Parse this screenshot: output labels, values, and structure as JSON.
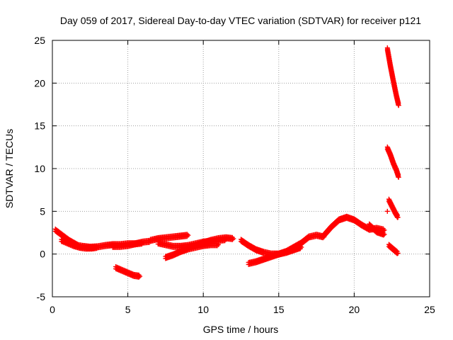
{
  "chart_data": {
    "type": "scatter",
    "title": "Day 059 of 2017, Sidereal Day-to-day VTEC variation (SDTVAR) for receiver p121",
    "xlabel": "GPS time / hours",
    "ylabel": "SDTVAR / TECUs",
    "xlim": [
      0,
      25
    ],
    "ylim": [
      -5,
      25
    ],
    "xticks": [
      0,
      5,
      10,
      15,
      20,
      25
    ],
    "yticks": [
      -5,
      0,
      5,
      10,
      15,
      20,
      25
    ],
    "xtick_labels": [
      "0",
      "5",
      "10",
      "15",
      "20",
      "25"
    ],
    "ytick_labels": [
      "-5",
      "0",
      "5",
      "10",
      "15",
      "20",
      "25"
    ],
    "grid": true,
    "marker": "+",
    "marker_color": "#ff0000",
    "series": [
      {
        "name": "SDTVAR",
        "segments": [
          {
            "x": [
              0.2,
              0.5,
              0.8,
              1.1,
              1.4,
              1.7,
              2.0,
              2.5,
              3.0,
              3.5,
              4.0,
              4.5,
              5.0,
              5.5,
              6.0,
              6.5
            ],
            "y": [
              2.8,
              2.4,
              2.0,
              1.6,
              1.3,
              1.0,
              0.9,
              0.8,
              0.85,
              1.0,
              1.1,
              1.1,
              1.2,
              1.2,
              1.4,
              1.5
            ]
          },
          {
            "x": [
              0.6,
              1.0,
              1.4,
              1.8,
              2.2,
              2.6,
              3.0
            ],
            "y": [
              1.6,
              1.3,
              1.0,
              0.8,
              0.7,
              0.7,
              0.8
            ]
          },
          {
            "x": [
              4.0,
              4.5,
              5.0,
              5.5,
              6.0
            ],
            "y": [
              0.9,
              0.9,
              1.0,
              1.2,
              1.3
            ]
          },
          {
            "x": [
              4.2,
              4.6,
              5.0,
              5.4,
              5.8
            ],
            "y": [
              -1.6,
              -1.9,
              -2.2,
              -2.5,
              -2.6
            ]
          },
          {
            "x": [
              6.5,
              7.0,
              7.5,
              8.0,
              8.5,
              9.0
            ],
            "y": [
              1.6,
              1.8,
              1.9,
              2.0,
              2.1,
              2.2
            ]
          },
          {
            "x": [
              7.0,
              7.5,
              8.0,
              8.5,
              9.0,
              9.5,
              10.0,
              10.5,
              11.0,
              11.5
            ],
            "y": [
              1.3,
              1.1,
              0.9,
              0.9,
              1.0,
              1.2,
              1.4,
              1.5,
              1.6,
              1.7
            ]
          },
          {
            "x": [
              7.5,
              8.0,
              8.5,
              9.0,
              9.5,
              10.0,
              10.5,
              11.0
            ],
            "y": [
              -0.4,
              -0.1,
              0.3,
              0.6,
              0.8,
              1.0,
              1.1,
              1.1
            ]
          },
          {
            "x": [
              9.0,
              9.5,
              10.0,
              10.5,
              11.0,
              11.5,
              12.0
            ],
            "y": [
              0.8,
              1.0,
              1.3,
              1.6,
              1.8,
              1.9,
              1.8
            ]
          },
          {
            "x": [
              12.5,
              13.0,
              13.5,
              14.0,
              14.5,
              15.0,
              15.5,
              16.0,
              16.5,
              17.0,
              17.5,
              18.0
            ],
            "y": [
              1.6,
              1.0,
              0.5,
              0.2,
              0.0,
              0.0,
              0.3,
              0.8,
              1.3,
              2.0,
              2.2,
              2.0
            ]
          },
          {
            "x": [
              13.0,
              13.5,
              14.0,
              14.5,
              15.0,
              15.5,
              16.0,
              16.5
            ],
            "y": [
              -1.1,
              -0.9,
              -0.6,
              -0.3,
              0.0,
              0.2,
              0.5,
              0.8
            ]
          },
          {
            "x": [
              18.0,
              18.5,
              19.0,
              19.5,
              20.0,
              20.5,
              21.0,
              21.5,
              22.0
            ],
            "y": [
              2.2,
              3.2,
              4.0,
              4.3,
              4.0,
              3.4,
              2.9,
              3.0,
              2.8
            ]
          },
          {
            "x": [
              21.0,
              21.5,
              22.0
            ],
            "y": [
              3.4,
              2.6,
              2.3
            ]
          },
          {
            "x": [
              22.2,
              22.4,
              22.6,
              22.8,
              22.95
            ],
            "y": [
              24.0,
              22.0,
              20.2,
              18.5,
              17.4
            ]
          },
          {
            "x": [
              22.2,
              22.4,
              22.6,
              22.8,
              22.95
            ],
            "y": [
              12.4,
              11.6,
              10.6,
              9.8,
              9.0
            ]
          },
          {
            "x": [
              22.3,
              22.5,
              22.7,
              22.9
            ],
            "y": [
              6.3,
              5.6,
              4.9,
              4.3
            ]
          },
          {
            "x": [
              22.2
            ],
            "y": [
              5.0
            ]
          },
          {
            "x": [
              22.3,
              22.5,
              22.7,
              22.9
            ],
            "y": [
              1.0,
              0.7,
              0.4,
              0.1
            ]
          }
        ]
      }
    ]
  }
}
